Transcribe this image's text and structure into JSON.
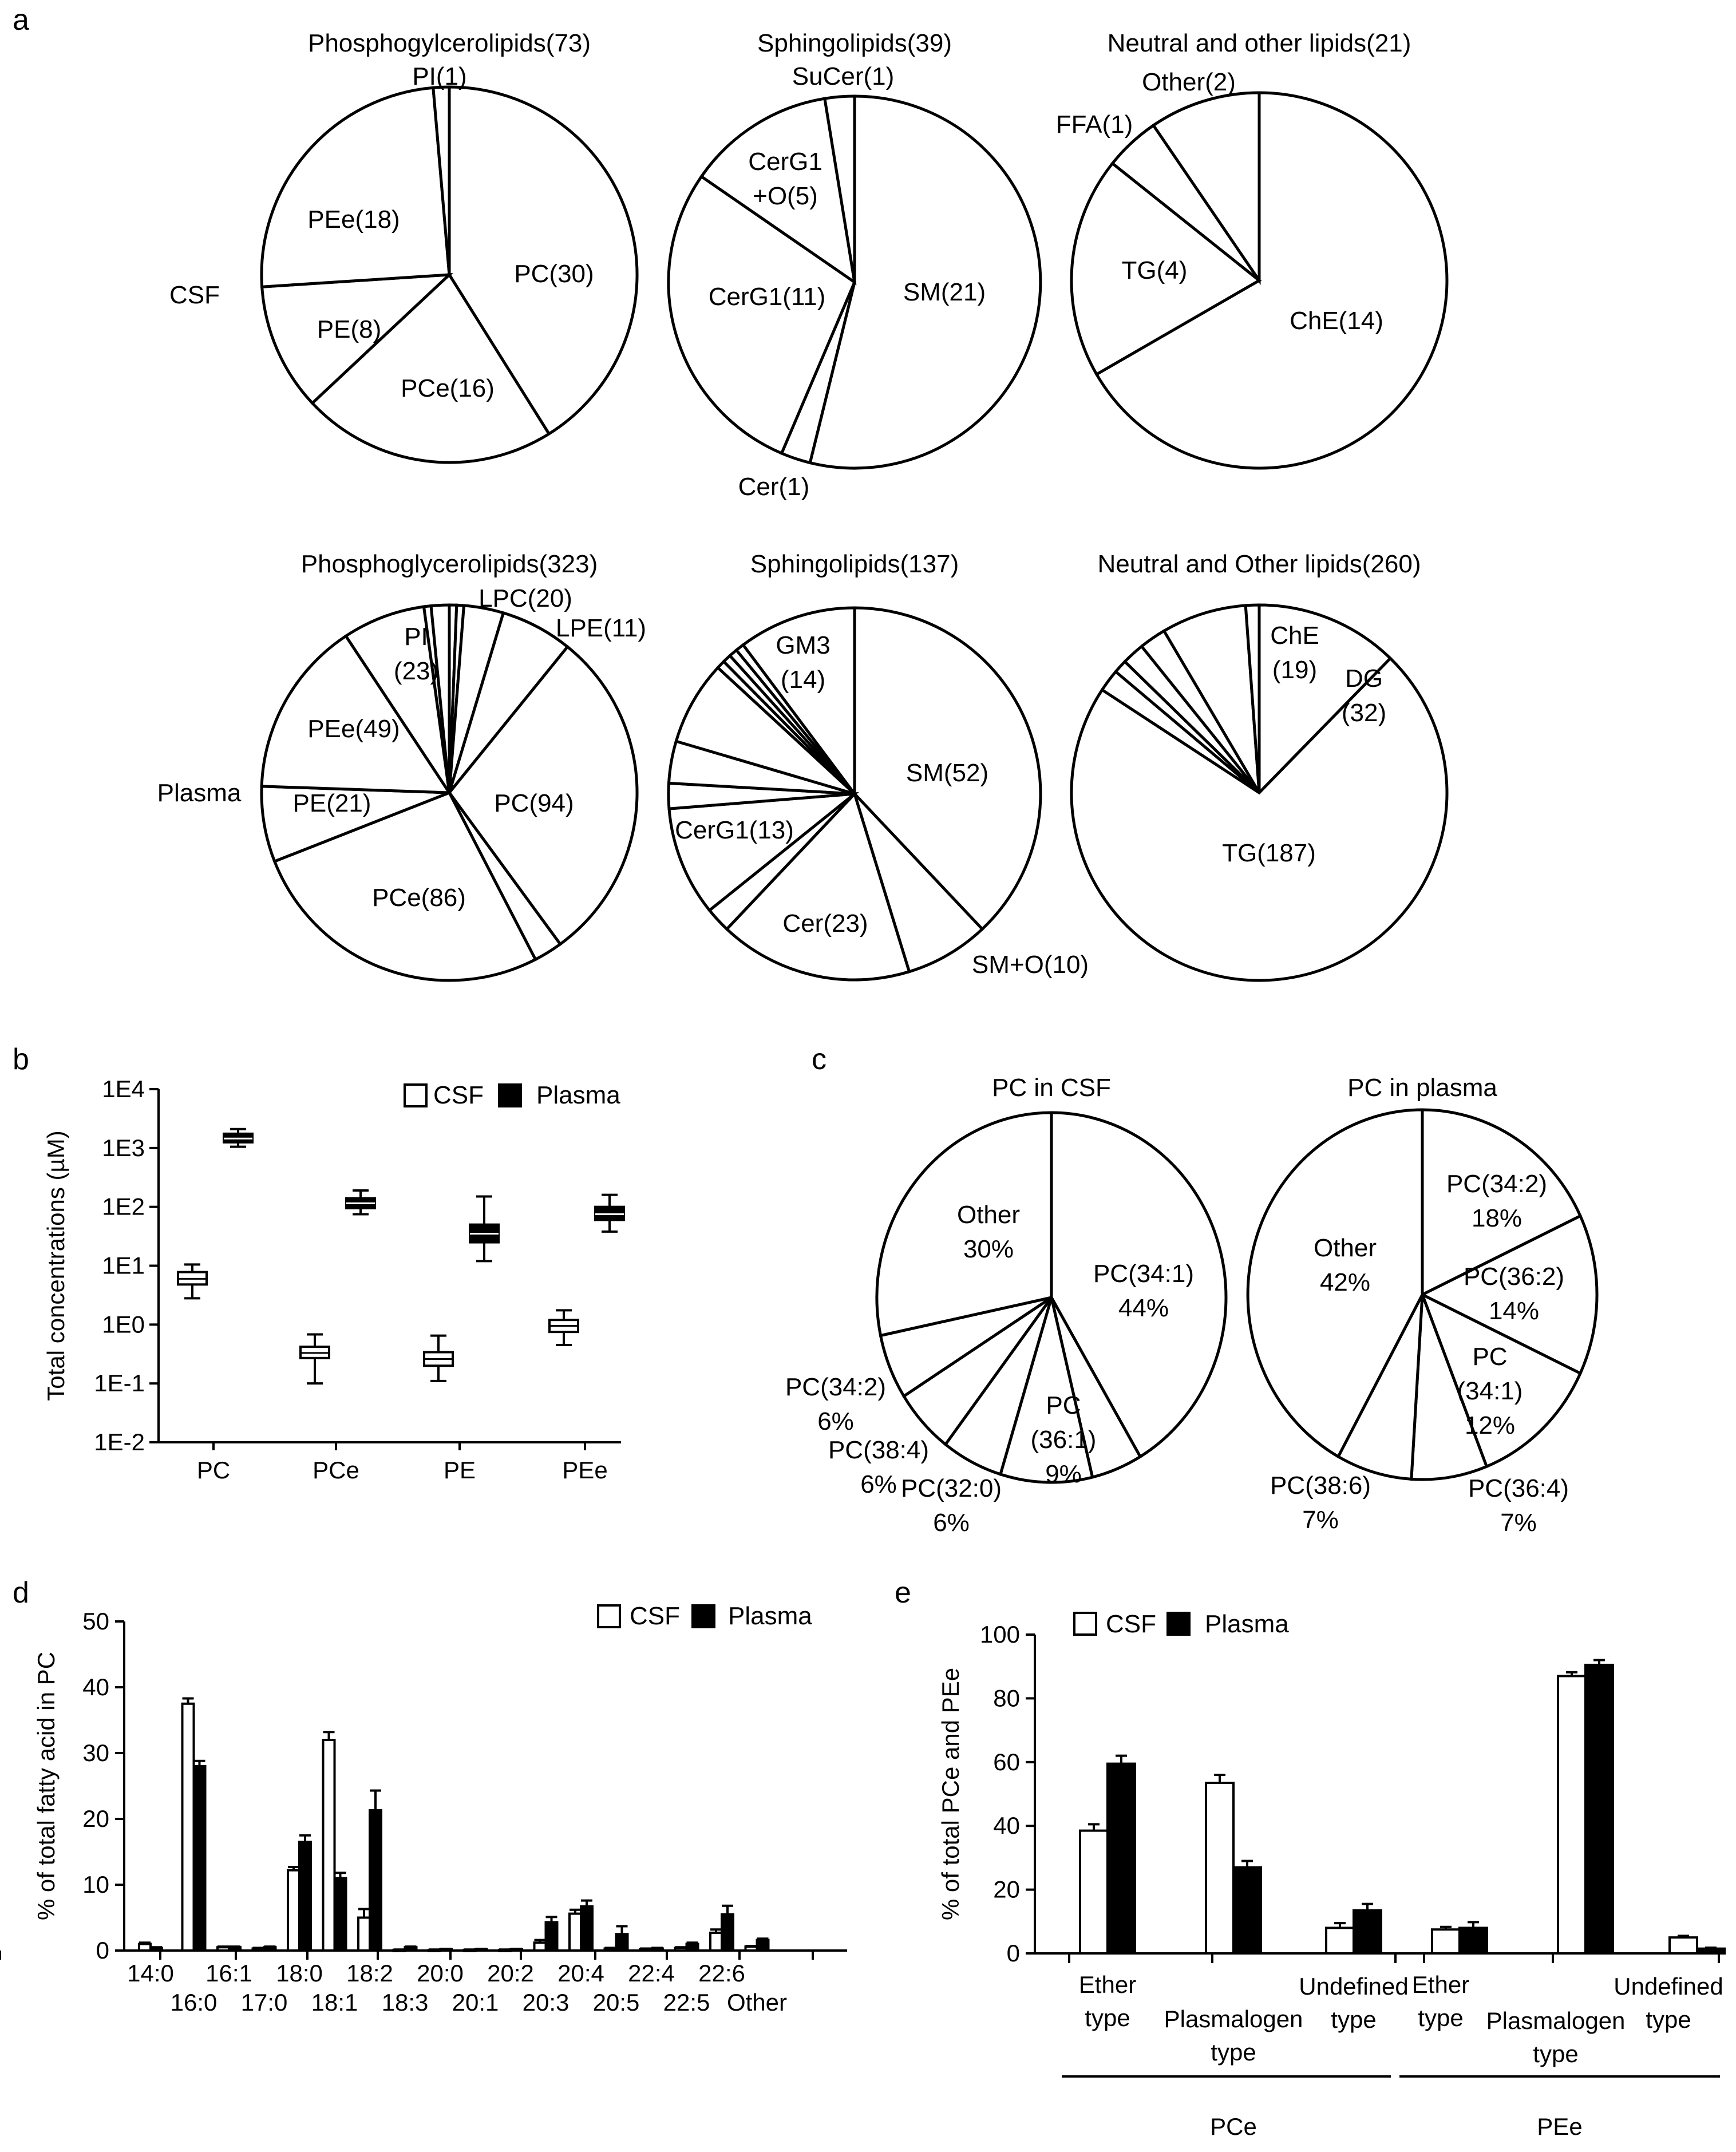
{
  "panels": {
    "a": "a",
    "b": "b",
    "c": "c",
    "d": "d",
    "e": "e"
  },
  "panel_a": {
    "row_labels": [
      "CSF",
      "Plasma"
    ]
  },
  "chart_data": [
    {
      "id": "a-csf-phospho",
      "type": "pie",
      "title": "Phosphogylcerolipids(73)",
      "slices": [
        {
          "label": "PC(30)",
          "value": 30
        },
        {
          "label": "PCe(16)",
          "value": 16
        },
        {
          "label": "PE(8)",
          "value": 8
        },
        {
          "label": "PEe(18)",
          "value": 18
        },
        {
          "label": "PI(1)",
          "value": 1
        }
      ]
    },
    {
      "id": "a-csf-sphingo",
      "type": "pie",
      "title": "Sphingolipids(39)",
      "slices": [
        {
          "label": "SM(21)",
          "value": 21
        },
        {
          "label": "Cer(1)",
          "value": 1
        },
        {
          "label": "CerG1(11)",
          "value": 11
        },
        {
          "label": "CerG1 +O(5)",
          "value": 5
        },
        {
          "label": "SuCer(1)",
          "value": 1
        }
      ]
    },
    {
      "id": "a-csf-neutral",
      "type": "pie",
      "title": "Neutral and other lipids(21)",
      "slices": [
        {
          "label": "ChE(14)",
          "value": 14
        },
        {
          "label": "TG(4)",
          "value": 4
        },
        {
          "label": "FFA(1)",
          "value": 1
        },
        {
          "label": "Other(2)",
          "value": 2
        }
      ]
    },
    {
      "id": "a-plasma-phospho",
      "type": "pie",
      "title": "Phosphoglycerolipids(323)",
      "slices": [
        {
          "label": "",
          "value": 2
        },
        {
          "label": "",
          "value": 2
        },
        {
          "label": "LPE(11)",
          "value": 11
        },
        {
          "label": "LPC(20)",
          "value": 20
        },
        {
          "label": "PC(94)",
          "value": 94
        },
        {
          "label": "",
          "value": 8
        },
        {
          "label": "PCe(86)",
          "value": 86
        },
        {
          "label": "PE(21)",
          "value": 21
        },
        {
          "label": "PEe(49)",
          "value": 49
        },
        {
          "label": "PI (23)",
          "value": 23
        },
        {
          "label": "",
          "value": 2
        },
        {
          "label": "",
          "value": 5
        }
      ]
    },
    {
      "id": "a-plasma-sphingo",
      "type": "pie",
      "title": "Sphingolipids(137)",
      "slices": [
        {
          "label": "SM(52)",
          "value": 52
        },
        {
          "label": "SM+O(10)",
          "value": 10
        },
        {
          "label": "Cer(23)",
          "value": 23
        },
        {
          "label": "",
          "value": 3
        },
        {
          "label": "CerG1(13)",
          "value": 13
        },
        {
          "label": "",
          "value": 3
        },
        {
          "label": "",
          "value": 5
        },
        {
          "label": "",
          "value": 10
        },
        {
          "label": "",
          "value": 1
        },
        {
          "label": "",
          "value": 1
        },
        {
          "label": "",
          "value": 1
        },
        {
          "label": "",
          "value": 1
        },
        {
          "label": "GM3 (14)",
          "value": 14
        }
      ]
    },
    {
      "id": "a-plasma-neutral",
      "type": "pie",
      "title": "Neutral and Other lipids(260)",
      "slices": [
        {
          "label": "DG (32)",
          "value": 32
        },
        {
          "label": "TG(187)",
          "value": 187
        },
        {
          "label": "",
          "value": 5
        },
        {
          "label": "",
          "value": 3
        },
        {
          "label": "",
          "value": 5
        },
        {
          "label": "",
          "value": 6
        },
        {
          "label": "ChE (19)",
          "value": 19
        },
        {
          "label": "",
          "value": 3
        }
      ]
    },
    {
      "id": "b",
      "type": "box",
      "ylabel": "Total concentrations (µM)",
      "yscale": "log",
      "ylim": [
        0.01,
        10000
      ],
      "yticks": [
        "1E4",
        "1E3",
        "1E2",
        "1E1",
        "1E0",
        "1E-1",
        "1E-2"
      ],
      "categories": [
        "PC",
        "PCe",
        "PE",
        "PEe"
      ],
      "legend": [
        "CSF",
        "Plasma"
      ],
      "series": [
        {
          "name": "CSF",
          "boxes": [
            {
              "min": 2.8,
              "q1": 4.8,
              "median": 6.0,
              "q3": 7.8,
              "max": 10.5
            },
            {
              "min": 0.1,
              "q1": 0.27,
              "median": 0.33,
              "q3": 0.42,
              "max": 0.68
            },
            {
              "min": 0.11,
              "q1": 0.2,
              "median": 0.26,
              "q3": 0.34,
              "max": 0.65
            },
            {
              "min": 0.45,
              "q1": 0.75,
              "median": 0.95,
              "q3": 1.2,
              "max": 1.75
            }
          ]
        },
        {
          "name": "Plasma",
          "boxes": [
            {
              "min": 1050,
              "q1": 1250,
              "median": 1450,
              "q3": 1750,
              "max": 2100
            },
            {
              "min": 75,
              "q1": 95,
              "median": 115,
              "q3": 140,
              "max": 190
            },
            {
              "min": 12,
              "q1": 25,
              "median": 35,
              "q3": 50,
              "max": 150
            },
            {
              "min": 38,
              "q1": 60,
              "median": 75,
              "q3": 100,
              "max": 160
            }
          ]
        }
      ]
    },
    {
      "id": "c-csf",
      "type": "pie",
      "title": "PC in CSF",
      "slices": [
        {
          "label": "PC(34:1) 44%",
          "value": 44
        },
        {
          "label": "",
          "value": 5
        },
        {
          "label": "PC (36:1) 9%",
          "value": 9
        },
        {
          "label": "PC(32:0) 6%",
          "value": 6
        },
        {
          "label": "PC(38:4) 6%",
          "value": 6
        },
        {
          "label": "PC(34:2) 6%",
          "value": 6
        },
        {
          "label": "Other 30%",
          "value": 30
        }
      ]
    },
    {
      "id": "c-plasma",
      "type": "pie",
      "title": "PC in plasma",
      "slices": [
        {
          "label": "PC(34:2) 18%",
          "value": 18
        },
        {
          "label": "PC(36:2) 14%",
          "value": 14
        },
        {
          "label": "PC (34:1) 12%",
          "value": 12
        },
        {
          "label": "PC(36:4) 7%",
          "value": 7
        },
        {
          "label": "PC(38:6) 7%",
          "value": 7
        },
        {
          "label": "Other 42%",
          "value": 42
        }
      ]
    },
    {
      "id": "d",
      "type": "bar",
      "ylabel": "% of total fatty acid in PC",
      "ylim": [
        0,
        50
      ],
      "yticks": [
        0,
        10,
        20,
        30,
        40,
        50
      ],
      "categories": [
        "14:0",
        "16:0",
        "16:1",
        "17:0",
        "18:0",
        "18:1",
        "18:2",
        "18:3",
        "20:0",
        "20:1",
        "20:2",
        "20:3",
        "20:4",
        "20:5",
        "22:4",
        "22:5",
        "22:6",
        "Other"
      ],
      "legend": [
        "CSF",
        "Plasma"
      ],
      "series": [
        {
          "name": "CSF",
          "values": [
            1.0,
            37.5,
            0.5,
            0.3,
            12.2,
            32.0,
            5.0,
            0.1,
            0.1,
            0.1,
            0.1,
            1.2,
            5.6,
            0.3,
            0.2,
            0.4,
            2.7,
            0.6
          ],
          "errors": [
            0.2,
            0.8,
            0.1,
            0.1,
            0.5,
            1.2,
            1.3,
            0.05,
            0.05,
            0.05,
            0.05,
            0.4,
            0.6,
            0.1,
            0.1,
            0.1,
            0.5,
            0.1
          ]
        },
        {
          "name": "Plasma",
          "values": [
            0.4,
            28.0,
            0.5,
            0.5,
            16.5,
            11.0,
            21.3,
            0.5,
            0.2,
            0.2,
            0.2,
            4.3,
            6.7,
            2.5,
            0.3,
            1.0,
            5.5,
            1.6
          ],
          "errors": [
            0.1,
            0.8,
            0.1,
            0.1,
            1.0,
            0.8,
            3.0,
            0.1,
            0.05,
            0.05,
            0.05,
            0.8,
            0.9,
            1.2,
            0.1,
            0.2,
            1.3,
            0.2
          ]
        }
      ]
    },
    {
      "id": "e",
      "type": "bar",
      "ylabel": "% of total PCe and PEe",
      "ylim": [
        0,
        100
      ],
      "yticks": [
        0,
        20,
        40,
        60,
        80,
        100
      ],
      "categories": [
        "Ether type",
        "Plasmalogen type",
        "Undefined type",
        "Ether type",
        "Plasmalogen type",
        "Undefined type"
      ],
      "groups": [
        "PCe",
        "PEe"
      ],
      "legend": [
        "CSF",
        "Plasma"
      ],
      "series": [
        {
          "name": "CSF",
          "values": [
            38.5,
            53.5,
            8.0,
            7.5,
            87.0,
            5.0
          ],
          "errors": [
            2.0,
            2.5,
            1.5,
            0.8,
            1.2,
            0.5
          ]
        },
        {
          "name": "Plasma",
          "values": [
            59.5,
            27.0,
            13.5,
            8.0,
            90.5,
            1.5
          ],
          "errors": [
            2.5,
            2.0,
            2.0,
            1.8,
            1.5,
            0.3
          ]
        }
      ]
    }
  ]
}
